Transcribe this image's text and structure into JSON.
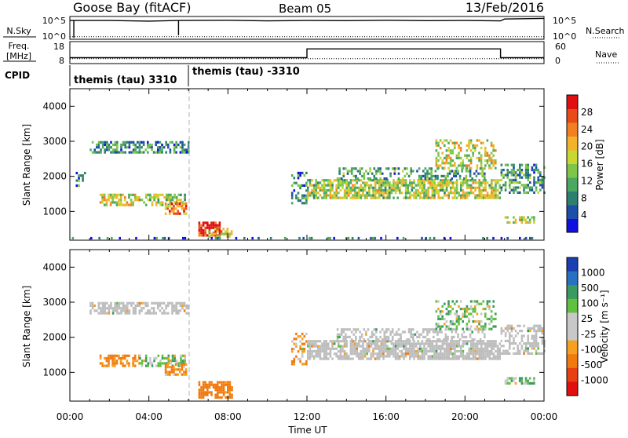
{
  "header": {
    "site": "Goose Bay (fitACF)",
    "beam": "Beam 05",
    "date": "13/Feb/2016"
  },
  "nsky_panel": {
    "left_label": "N.Sky",
    "left_ticks": [
      "10^5",
      "10^0"
    ],
    "right_ticks": [
      "10^5",
      "10^0"
    ],
    "right_label": "N.Search"
  },
  "freq_panel": {
    "left_label_1": "Freq.",
    "left_label_2": "[MHz]",
    "left_ticks": [
      "18",
      "8"
    ],
    "right_ticks": [
      "60",
      "0"
    ],
    "right_label": "Nave"
  },
  "cpid_panel": {
    "label": "CPID",
    "segments": [
      {
        "text": "themis (tau) 3310"
      },
      {
        "text": "themis (tau) -3310"
      }
    ]
  },
  "colors": {
    "power_scale": [
      "#1010e0",
      "#1d4ea8",
      "#2f7f6e",
      "#4aa860",
      "#7ec64a",
      "#c8d830",
      "#f2b22a",
      "#f28020",
      "#e84a18",
      "#e01010"
    ],
    "velocity_scale": [
      "#1a3fb0",
      "#2a70c0",
      "#3a9a60",
      "#60c040",
      "#c8c8c8",
      "#c8c8c8",
      "#f5a020",
      "#f07a10",
      "#e84010",
      "#e01010"
    ],
    "ground_scatter": "#bdbdbd"
  },
  "power_colorbar": {
    "label": "Power [dB]",
    "ticks": [
      "28",
      "24",
      "20",
      "16",
      "12",
      "8",
      "4"
    ]
  },
  "velocity_colorbar": {
    "label": "Velocity [m s⁻¹]",
    "ticks": [
      "1000",
      "500",
      "100",
      "25",
      "-25",
      "-100",
      "-500",
      "-1000"
    ]
  },
  "chart_data": [
    {
      "type": "line",
      "title": "N.Sky / N.Search",
      "x_unit": "hours UT",
      "xlim": [
        0,
        24
      ],
      "series": [
        {
          "name": "N.Sky",
          "style": "solid",
          "x": [
            0,
            0.5,
            2,
            4,
            5.5,
            8,
            10,
            12,
            14,
            16,
            18,
            20,
            21.8,
            22,
            24
          ],
          "y_norm": [
            0.85,
            0.85,
            0.85,
            0.82,
            0.85,
            0.86,
            0.83,
            0.85,
            0.84,
            0.86,
            0.84,
            0.85,
            0.83,
            0.92,
            0.95
          ]
        },
        {
          "name": "N.Search",
          "style": "dotted",
          "x": [
            0,
            24
          ],
          "y_norm": [
            0.08,
            0.08
          ]
        }
      ]
    },
    {
      "type": "line",
      "title": "Frequency / Nave",
      "x_unit": "hours UT",
      "xlim": [
        0,
        24
      ],
      "ylim_left": [
        8,
        18
      ],
      "ylim_right": [
        0,
        60
      ],
      "series": [
        {
          "name": "Freq. [MHz]",
          "style": "solid",
          "x": [
            0,
            12,
            12,
            21.8,
            21.8,
            24
          ],
          "y": [
            10.5,
            10.5,
            14.8,
            14.8,
            10.5,
            10.5
          ]
        },
        {
          "name": "Nave",
          "style": "dotted",
          "x": [
            0,
            24
          ],
          "y": [
            12,
            12
          ]
        }
      ]
    },
    {
      "type": "heatmap",
      "title": "Power [dB]",
      "xlabel": "",
      "ylabel": "Slant Range [km]",
      "xlim": [
        0,
        24
      ],
      "ylim": [
        180,
        4500
      ],
      "x_ticks": [
        "00:00",
        "04:00",
        "08:00",
        "12:00",
        "16:00",
        "20:00",
        "00:00"
      ],
      "y_ticks": [
        1000,
        2000,
        3000,
        4000
      ],
      "zlim": [
        0,
        32
      ],
      "regions": [
        {
          "t0": 1.0,
          "t1": 6.0,
          "r0": 2650,
          "r1": 2950,
          "v": 9,
          "density": 0.65
        },
        {
          "t0": 0.3,
          "t1": 0.8,
          "r0": 1700,
          "r1": 2100,
          "v": 8,
          "density": 0.4
        },
        {
          "t0": 1.5,
          "t1": 3.5,
          "r0": 1150,
          "r1": 1450,
          "v": 17,
          "density": 0.6
        },
        {
          "t0": 3.5,
          "t1": 5.8,
          "r0": 1150,
          "r1": 1500,
          "v": 15,
          "density": 0.55
        },
        {
          "t0": 4.8,
          "t1": 5.9,
          "r0": 900,
          "r1": 1200,
          "v": 25,
          "density": 0.7
        },
        {
          "t0": 6.5,
          "t1": 7.6,
          "r0": 280,
          "r1": 650,
          "v": 30,
          "density": 0.8
        },
        {
          "t0": 7.0,
          "t1": 8.2,
          "r0": 250,
          "r1": 500,
          "v": 20,
          "density": 0.55
        },
        {
          "t0": 11.2,
          "t1": 12.0,
          "r0": 1200,
          "r1": 2100,
          "v": 8,
          "density": 0.35
        },
        {
          "t0": 12.0,
          "t1": 21.8,
          "r0": 1350,
          "r1": 1900,
          "v": 16,
          "density": 0.75
        },
        {
          "t0": 13.5,
          "t1": 21.0,
          "r0": 1900,
          "r1": 2200,
          "v": 10,
          "density": 0.45
        },
        {
          "t0": 18.5,
          "t1": 21.5,
          "r0": 2200,
          "r1": 3000,
          "v": 17,
          "density": 0.45
        },
        {
          "t0": 21.8,
          "t1": 24.0,
          "r0": 1500,
          "r1": 2300,
          "v": 10,
          "density": 0.5
        },
        {
          "t0": 22.0,
          "t1": 23.5,
          "r0": 650,
          "r1": 850,
          "v": 18,
          "density": 0.6
        },
        {
          "t0": 0.0,
          "t1": 24.0,
          "r0": 200,
          "r1": 260,
          "v": 6,
          "density": 0.2
        }
      ]
    },
    {
      "type": "heatmap",
      "title": "Velocity [m s⁻¹]",
      "xlabel": "Time UT",
      "ylabel": "Slant Range [km]",
      "xlim": [
        0,
        24
      ],
      "ylim": [
        180,
        4500
      ],
      "x_ticks": [
        "00:00",
        "04:00",
        "08:00",
        "12:00",
        "16:00",
        "20:00",
        "00:00"
      ],
      "y_ticks": [
        1000,
        2000,
        3000,
        4000
      ],
      "regions": [
        {
          "t0": 1.0,
          "t1": 6.0,
          "r0": 2650,
          "r1": 2950,
          "v": 0,
          "ground_scatter": true,
          "density": 0.65
        },
        {
          "t0": 1.5,
          "t1": 3.5,
          "r0": 1150,
          "r1": 1450,
          "v": -150,
          "density": 0.6
        },
        {
          "t0": 3.5,
          "t1": 5.8,
          "r0": 1150,
          "r1": 1500,
          "v": 60,
          "density": 0.55
        },
        {
          "t0": 4.8,
          "t1": 5.9,
          "r0": 900,
          "r1": 1200,
          "v": -120,
          "density": 0.7
        },
        {
          "t0": 6.5,
          "t1": 8.2,
          "r0": 250,
          "r1": 700,
          "v": -200,
          "density": 0.75
        },
        {
          "t0": 11.2,
          "t1": 12.0,
          "r0": 1200,
          "r1": 2100,
          "v": -80,
          "density": 0.35
        },
        {
          "t0": 12.0,
          "t1": 21.8,
          "r0": 1350,
          "r1": 1900,
          "v": 0,
          "ground_scatter": true,
          "density": 0.8
        },
        {
          "t0": 13.5,
          "t1": 21.0,
          "r0": 1900,
          "r1": 2200,
          "v": 0,
          "ground_scatter": true,
          "density": 0.45
        },
        {
          "t0": 18.5,
          "t1": 21.5,
          "r0": 2200,
          "r1": 3000,
          "v": 60,
          "density": 0.45
        },
        {
          "t0": 21.8,
          "t1": 24.0,
          "r0": 1500,
          "r1": 2300,
          "v": 0,
          "ground_scatter": true,
          "density": 0.5
        },
        {
          "t0": 22.0,
          "t1": 23.5,
          "r0": 650,
          "r1": 850,
          "v": 80,
          "density": 0.6
        }
      ]
    }
  ]
}
